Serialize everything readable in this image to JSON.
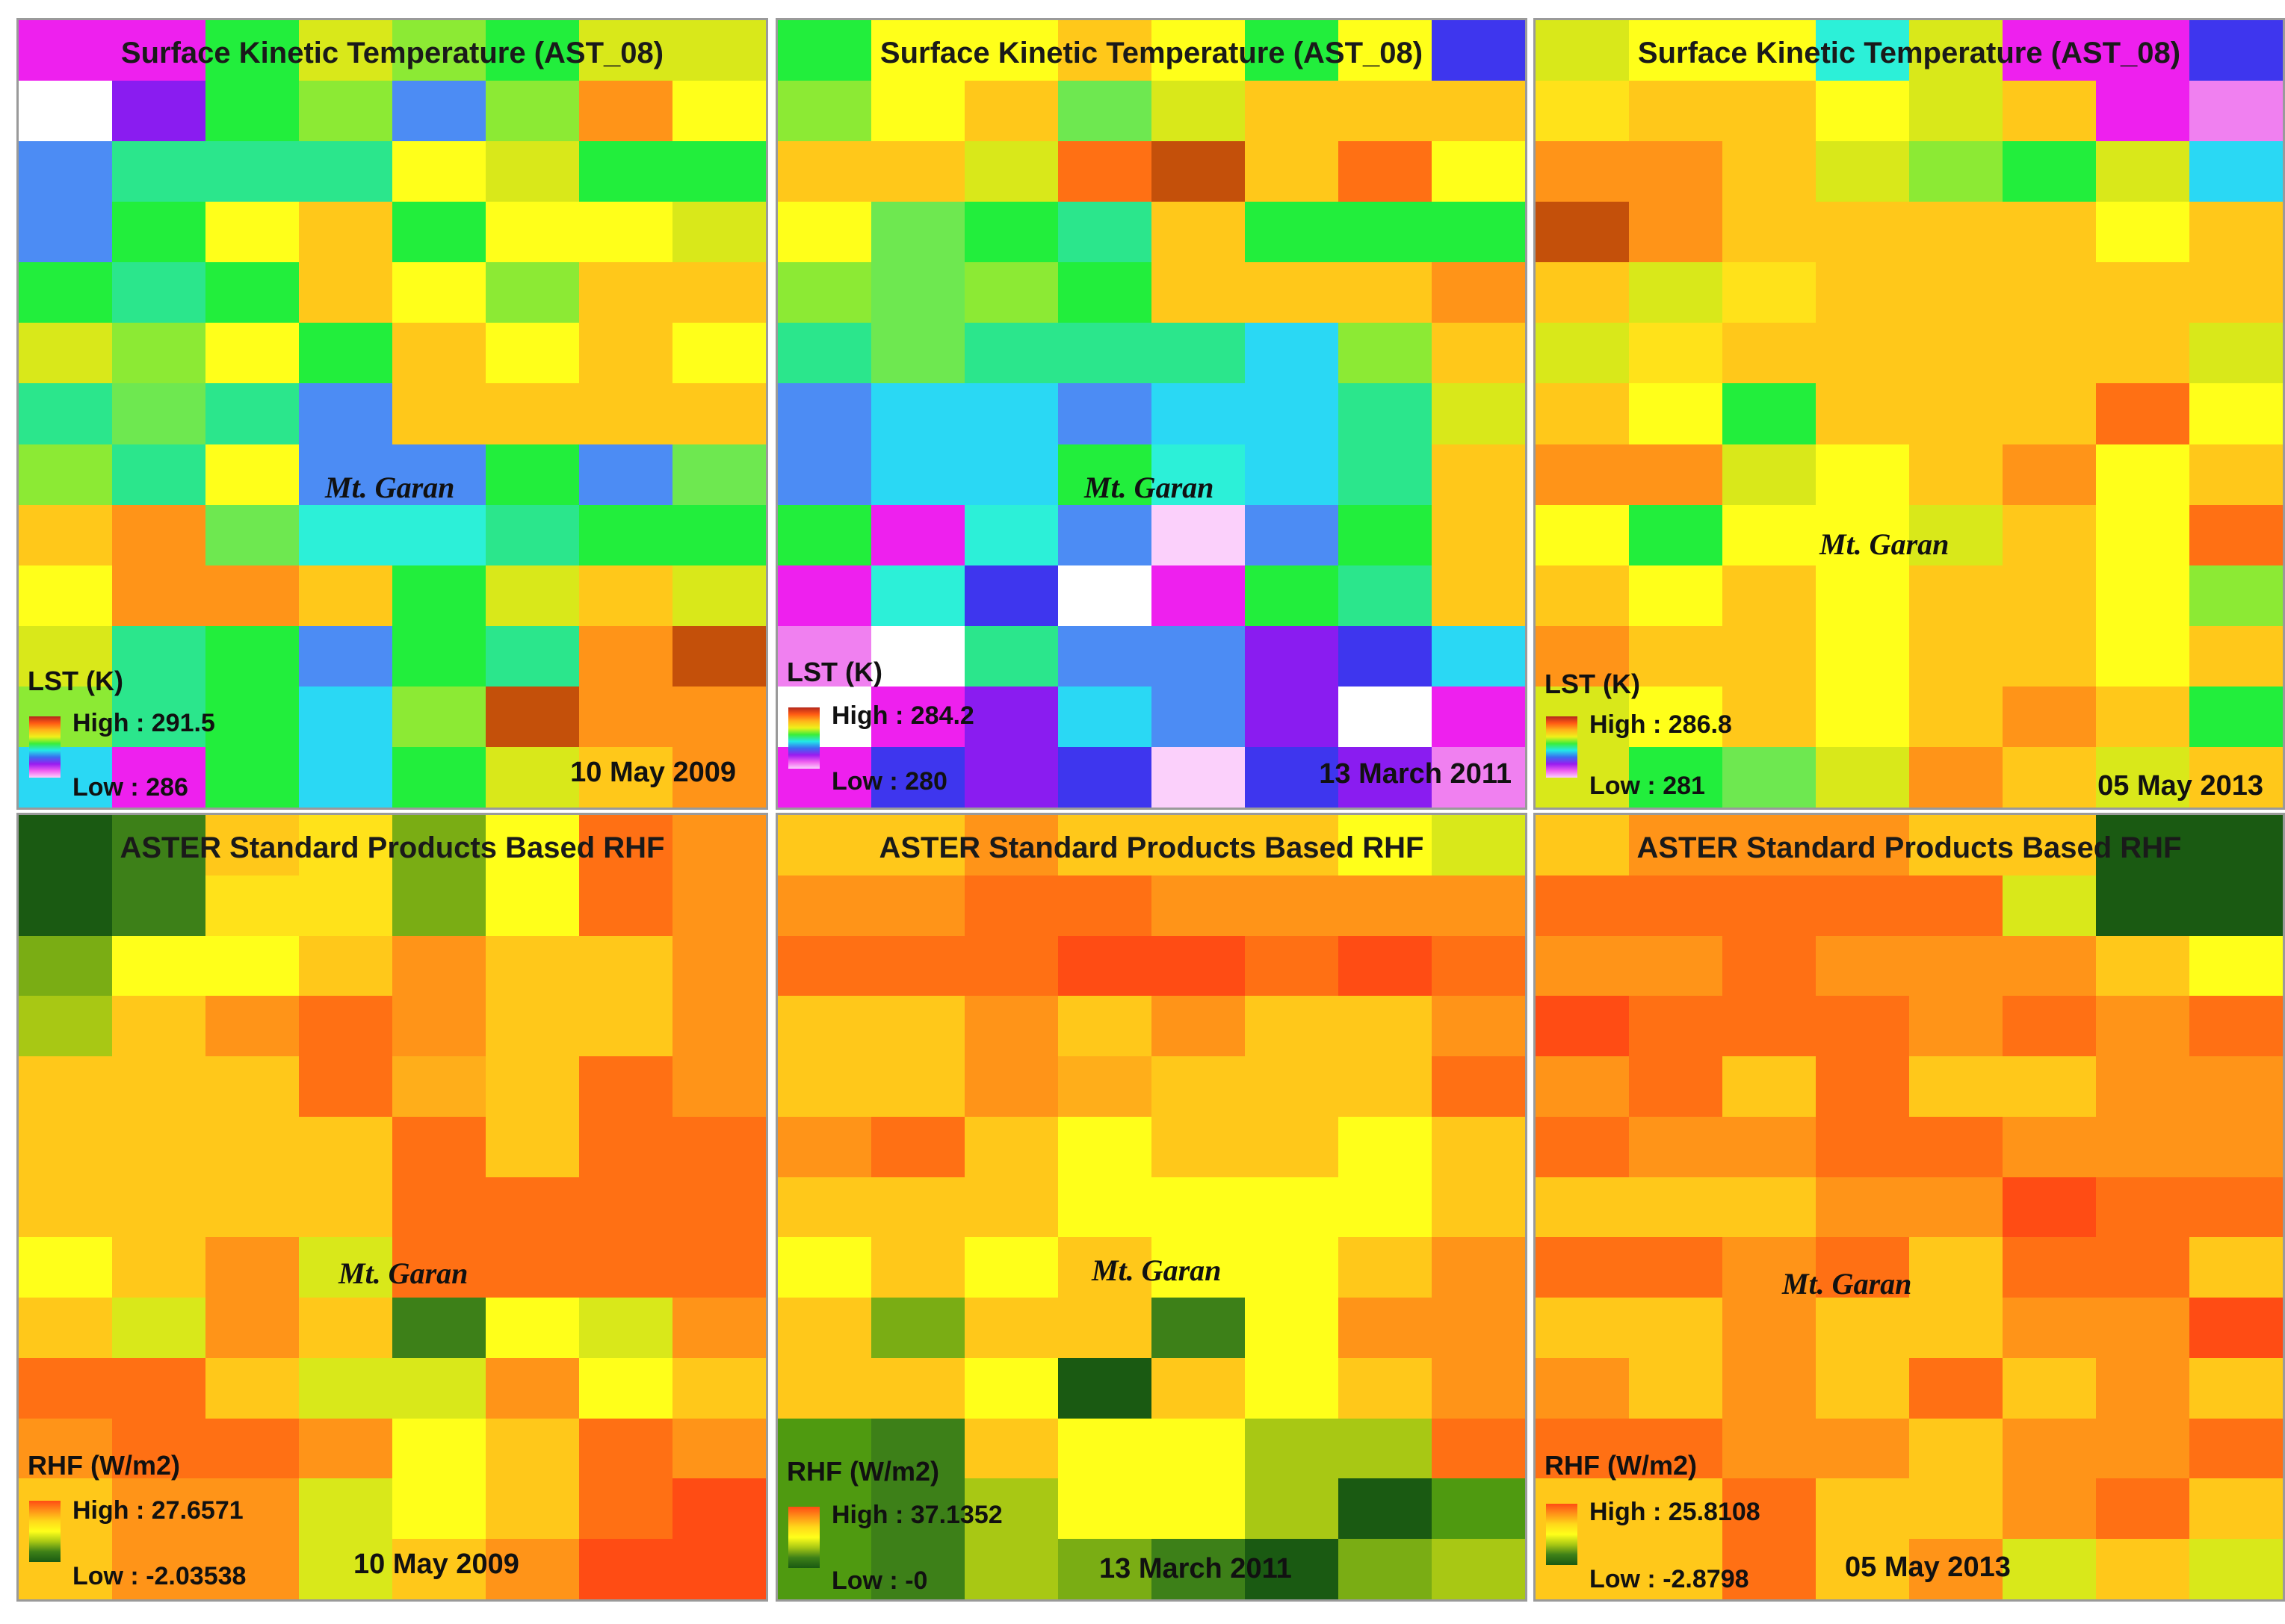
{
  "palette": {
    "K": "#1f8f1f",
    "d": "#4f9a10",
    "o": "#7aad14",
    "v": "#a8c814",
    "y": "#d9e81a",
    "Y": "#ffff1a",
    "w": "#ffe21a",
    "a": "#ffc81a",
    "A": "#ffae1a",
    "O": "#ff9418",
    "R": "#ff7014",
    "r": "#ff4c14",
    "B": "#c4500a",
    "g": "#22ee3c",
    "l": "#8cea34",
    "e": "#6ee850",
    "s": "#2be68c",
    "c": "#2cf0d8",
    "C": "#2ad8f4",
    "b": "#4c8cf4",
    "n": "#3e36ee",
    "p": "#8a1cf0",
    "P": "#ee20ee",
    "m": "#f080f0",
    "k": "#fbd0fb",
    "W": "#ffffff",
    "G": "#1a5a12",
    "D": "#3d8018"
  },
  "lst_legend_colors": [
    "#b4281c",
    "#ff5a14",
    "#ffb41a",
    "#f0f01a",
    "#3aee3a",
    "#22e8e8",
    "#3a6cf0",
    "#9a1cf0",
    "#f060f0",
    "#fbd0fb"
  ],
  "rhf_legend_colors": [
    "#ff4c14",
    "#ff9418",
    "#ffd81a",
    "#ffff1a",
    "#a8c814",
    "#3d8018",
    "#1a5a12"
  ],
  "panels": [
    {
      "title": "Surface Kinetic Temperature (AST_08)",
      "place": "Mt. Garan",
      "legend": {
        "title": "LST (K)",
        "high": "High : 291.5",
        "low": "Low : 286",
        "ramp": "lst"
      },
      "date": "10 May 2009",
      "grid": [
        "PPgylgyy",
        "WpglblOY",
        "bsssYygg",
        "bgYagYYy",
        "gsgaYlaa",
        "ylYgaYaY",
        "sesbaaaa",
        "lsYbbgbe",
        "aOeccsgg",
        "YOOagyay",
        "ysgbgsOB",
        "lsgClBOO",
        "CPgCgyaO"
      ]
    },
    {
      "title": "Surface Kinetic Temperature (AST_08)",
      "place": "Mt. Garan",
      "legend": {
        "title": "LST (K)",
        "high": "High : 284.2",
        "low": "Low : 280",
        "ramp": "lst"
      },
      "date": "13 March 2011",
      "grid": [
        "gYYaYgYn",
        "lYaeyaaa",
        "aayRBaRY",
        "Yegsaggg",
        "lelgaaaO",
        "sesssCla",
        "bCCbCCsy",
        "bCCgcCsa",
        "gPcbkbga",
        "PcnWPgsa",
        "mWsbbpnC",
        "WPpCbpWP",
        "Pnpnknpm"
      ]
    },
    {
      "title": "Surface Kinetic Temperature (AST_08)",
      "place": "Mt. Garan",
      "legend": {
        "title": "LST (K)",
        "high": "High : 286.8",
        "low": "Low : 281",
        "ramp": "lst"
      },
      "date": "05 May 2013",
      "grid": [
        "yYYcyPPn",
        "waaYyaPm",
        "OOaylgyC",
        "BOaaaaYa",
        "aywaaaaa",
        "ywaaaaay",
        "aYgaaaRY",
        "OOyYaOYa",
        "YgYYyaYR",
        "aYaYaaYl",
        "OaaYaaYa",
        "yYaYaOag",
        "ygeyOaya"
      ]
    },
    {
      "title": "ASTER Standard Products Based RHF",
      "place": "Mt. Garan",
      "legend": {
        "title": "RHF (W/m2)",
        "high": "High : 27.6571",
        "low": "Low : -2.03538",
        "ramp": "rhf"
      },
      "date": "10 May 2009",
      "grid": [
        "GDawoYRO",
        "GDwwoYRO",
        "oYYaOaaO",
        "vaOROaaO",
        "aaaRAaRO",
        "aaaaRaRR",
        "aaaaRRRR",
        "YaOyRRRR",
        "ayOaDYyO",
        "RRayyOYa",
        "ORROYaRO",
        "aOOyYaRr",
        "aOOyaOrr"
      ]
    },
    {
      "title": "ASTER Standard Products Based RHF",
      "place": "Mt. Garan",
      "legend": {
        "title": "RHF (W/m2)",
        "high": "High : 37.1352",
        "low": "Low : -0",
        "ramp": "rhf"
      },
      "date": "13 March 2011",
      "grid": [
        "aaOaaaYy",
        "OORROOOO",
        "RRRrrRrR",
        "aaOaOaaO",
        "aaOAaaaR",
        "ORaYaaYa",
        "aaaYYYYa",
        "YaYaYYaO",
        "aoaaDYOO",
        "aaYGaYaO",
        "dDaYYvvR",
        "dDvYYvGd",
        "dDvoDGov"
      ]
    },
    {
      "title": "ASTER Standard Products Based RHF",
      "place": "Mt. Garan",
      "legend": {
        "title": "RHF (W/m2)",
        "high": "High : 25.8108",
        "low": "Low : -2.8798",
        "ramp": "rhf"
      },
      "date": "05 May 2013",
      "grid": [
        "aOOOaaGG",
        "RRRRRyGG",
        "OOROOOaY",
        "rRRROROR",
        "ORaRaaOO",
        "ROORROOO",
        "aaaOOrRR",
        "RRORaRRa",
        "aaOaaOOr",
        "OaOaRaOa",
        "RROOaOOR",
        "aaRaaORa",
        "aaRaOyay"
      ]
    }
  ]
}
